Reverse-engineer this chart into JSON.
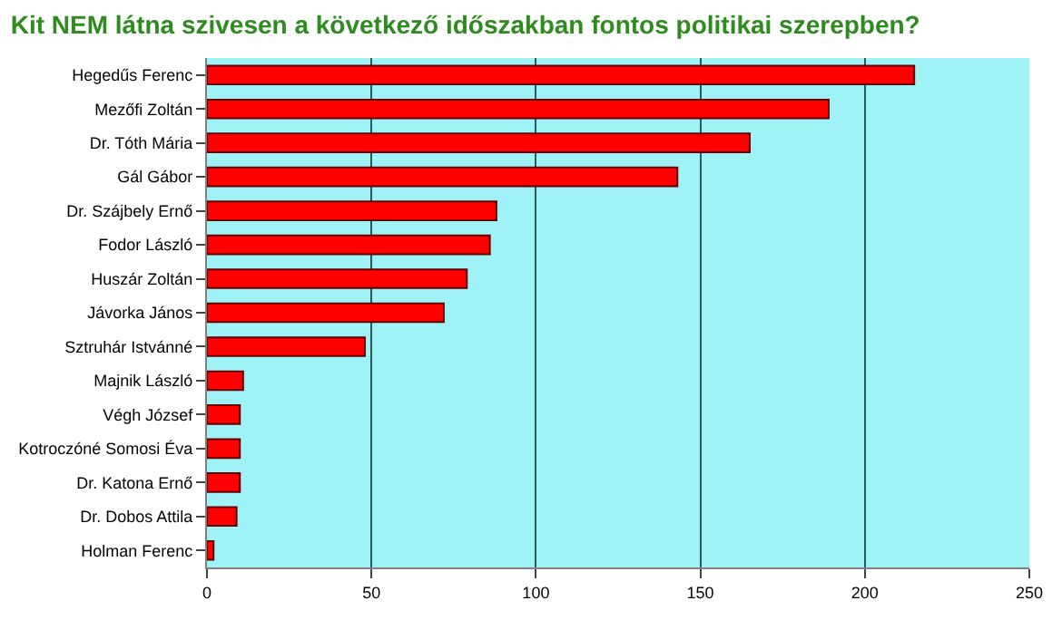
{
  "chart_data": {
    "type": "bar",
    "orientation": "horizontal",
    "title": "Kit NEM látna szivesen a következő időszakban fontos politikai szerepben?",
    "categories": [
      "Hegedűs Ferenc",
      "Mezőfi Zoltán",
      "Dr. Tóth Mária",
      "Gál Gábor",
      "Dr. Szájbely Ernő",
      "Fodor László",
      "Huszár Zoltán",
      "Jávorka János",
      "Sztruhár Istvánné",
      "Majnik László",
      "Végh József",
      "Kotroczóné Somosi Éva",
      "Dr. Katona Ernő",
      "Dr. Dobos Attila",
      "Holman Ferenc"
    ],
    "values": [
      215,
      189,
      165,
      143,
      88,
      86,
      79,
      72,
      48,
      11,
      10,
      10,
      10,
      9,
      2
    ],
    "color": "#ff0000",
    "xlim": [
      0,
      250
    ],
    "xticks": [
      0,
      50,
      100,
      150,
      200,
      250
    ],
    "grid": "x"
  }
}
